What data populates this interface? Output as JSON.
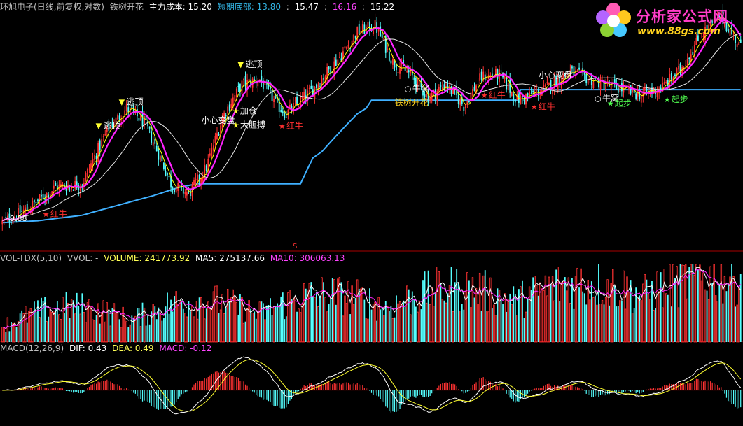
{
  "header": {
    "stock_name": "环旭电子(日线,前复权,对数)",
    "indicator_name": "铁树开花",
    "cost_label": "主力成本:",
    "cost_value": "15.20",
    "bottom_label": "短期底部:",
    "bottom_value": "13.80",
    "v1": "15.47",
    "v2": "16.16",
    "v3": "15.22"
  },
  "vol_header": {
    "name": "VOL-TDX(5,10)",
    "vvol": "VVOL: -",
    "volume": "VOLUME: 241773.92",
    "ma5": "MA5: 275137.66",
    "ma10": "MA10: 306063.13"
  },
  "macd_header": {
    "name": "MACD(12,26,9)",
    "dif": "DIF: 0.43",
    "dea": "DEA: 0.49",
    "macd": "MACD: -0.12"
  },
  "logo": {
    "title": "分析家公式网",
    "url": "www.88gs.com"
  },
  "price_min_label": "9.88",
  "s_marker": "S",
  "colors": {
    "up": "#ff3232",
    "down": "#54ffff",
    "ma_mag": "#ff22ff",
    "ma_yel": "#ffff00",
    "support": "#3fb0ff",
    "axis": "#aa0000"
  },
  "chart_data": {
    "type": "candlestick",
    "price_anchors": [
      [
        0,
        9.9
      ],
      [
        15,
        10.3
      ],
      [
        30,
        10.9
      ],
      [
        45,
        11.0
      ],
      [
        60,
        12.8
      ],
      [
        70,
        13.5
      ],
      [
        80,
        13.0
      ],
      [
        95,
        11.0
      ],
      [
        105,
        10.7
      ],
      [
        115,
        11.5
      ],
      [
        125,
        13.3
      ],
      [
        135,
        14.4
      ],
      [
        145,
        14.6
      ],
      [
        155,
        13.6
      ],
      [
        160,
        13.3
      ],
      [
        175,
        14.2
      ],
      [
        190,
        15.5
      ],
      [
        200,
        16.6
      ],
      [
        210,
        16.9
      ],
      [
        220,
        15.3
      ],
      [
        230,
        14.8
      ],
      [
        240,
        13.9
      ],
      [
        250,
        14.4
      ],
      [
        260,
        13.6
      ],
      [
        270,
        14.7
      ],
      [
        280,
        14.8
      ],
      [
        290,
        13.8
      ],
      [
        305,
        14.2
      ],
      [
        320,
        14.9
      ],
      [
        335,
        14.5
      ],
      [
        350,
        14.2
      ],
      [
        360,
        14.0
      ],
      [
        372,
        14.3
      ],
      [
        382,
        15.0
      ],
      [
        395,
        16.6
      ],
      [
        405,
        17.3
      ],
      [
        416,
        15.9
      ]
    ],
    "support_anchors": [
      [
        0,
        9.9
      ],
      [
        20,
        9.95
      ],
      [
        45,
        10.1
      ],
      [
        85,
        10.65
      ],
      [
        100,
        10.9
      ],
      [
        110,
        11.0
      ],
      [
        168,
        11.0
      ],
      [
        175,
        11.8
      ],
      [
        180,
        12.0
      ],
      [
        200,
        13.3
      ],
      [
        205,
        13.5
      ],
      [
        208,
        13.8
      ],
      [
        290,
        13.8
      ],
      [
        292,
        14.2
      ],
      [
        416,
        14.2
      ]
    ],
    "signals": [
      {
        "i": 25,
        "text": "红牛",
        "type": "red-star",
        "pos": "below"
      },
      {
        "i": 55,
        "text": "逃顶",
        "type": "down-tri",
        "pos": "above"
      },
      {
        "i": 68,
        "text": "逃顶",
        "type": "down-tri",
        "pos": "above"
      },
      {
        "i": 120,
        "text": "小心变盘",
        "type": "text",
        "pos": "above"
      },
      {
        "i": 132,
        "text": "加仓",
        "type": "yellow-star",
        "pos": "below"
      },
      {
        "i": 132,
        "text": "大胆搏",
        "type": "yellow-star",
        "pos": "below2"
      },
      {
        "i": 135,
        "text": "逃顶",
        "type": "down-tri",
        "pos": "above"
      },
      {
        "i": 158,
        "text": "红牛",
        "type": "red-star",
        "pos": "below"
      },
      {
        "i": 229,
        "text": "牛窝",
        "type": "circle",
        "pos": "below"
      },
      {
        "i": 229,
        "text": "铁树开花",
        "type": "text",
        "pos": "below2"
      },
      {
        "i": 272,
        "text": "红牛",
        "type": "red-star",
        "pos": "below"
      },
      {
        "i": 300,
        "text": "红牛",
        "type": "red-star",
        "pos": "below"
      },
      {
        "i": 310,
        "text": "小心变盘",
        "type": "text",
        "pos": "above"
      },
      {
        "i": 336,
        "text": "牛窝",
        "type": "circle",
        "pos": "below"
      },
      {
        "i": 343,
        "text": "起步",
        "type": "green-star",
        "pos": "below"
      },
      {
        "i": 375,
        "text": "起步",
        "type": "green-star",
        "pos": "below"
      }
    ],
    "ylim": [
      9.5,
      17.5
    ],
    "log_scale": true
  }
}
